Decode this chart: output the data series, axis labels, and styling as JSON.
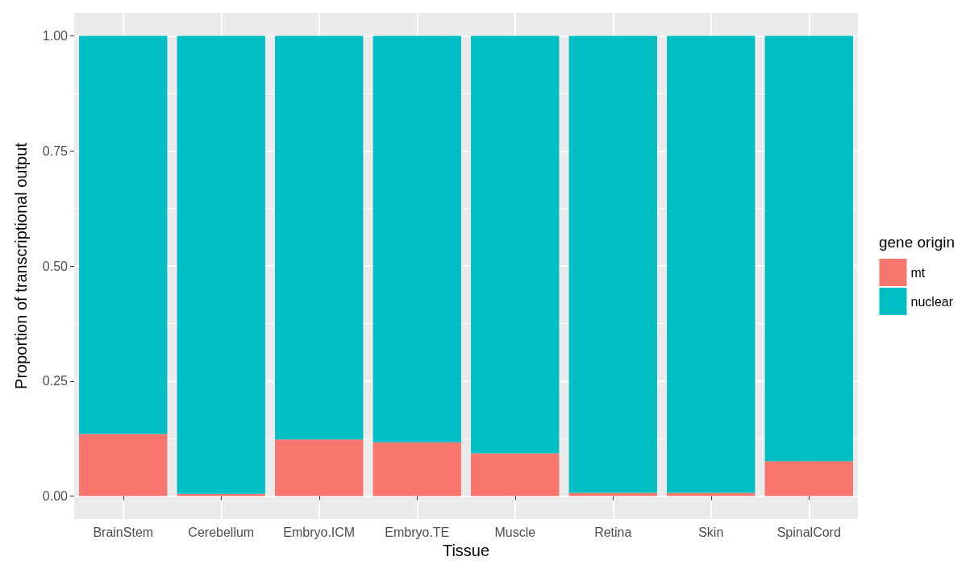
{
  "chart_data": {
    "type": "bar",
    "stacked": true,
    "xlabel": "Tissue",
    "ylabel": "Proportion of transcriptional output",
    "legend_title": "gene origin",
    "legend": "right",
    "grid": true,
    "categories": [
      "BrainStem",
      "Cerebellum",
      "Embryo.ICM",
      "Embryo.TE",
      "Muscle",
      "Retina",
      "Skin",
      "SpinalCord"
    ],
    "series": [
      {
        "name": "mt",
        "color": "#f8766d",
        "values": [
          0.135,
          0.005,
          0.123,
          0.117,
          0.093,
          0.007,
          0.007,
          0.076
        ]
      },
      {
        "name": "nuclear",
        "color": "#00bfc4",
        "values": [
          0.865,
          0.995,
          0.877,
          0.883,
          0.907,
          0.993,
          0.993,
          0.924
        ]
      }
    ],
    "ylim": [
      -0.05,
      1.05
    ],
    "yticks": [
      {
        "value": 0,
        "label": "0.00"
      },
      {
        "value": 0.25,
        "label": "0.25"
      },
      {
        "value": 0.5,
        "label": "0.50"
      },
      {
        "value": 0.75,
        "label": "0.75"
      },
      {
        "value": 1,
        "label": "1.00"
      }
    ]
  }
}
